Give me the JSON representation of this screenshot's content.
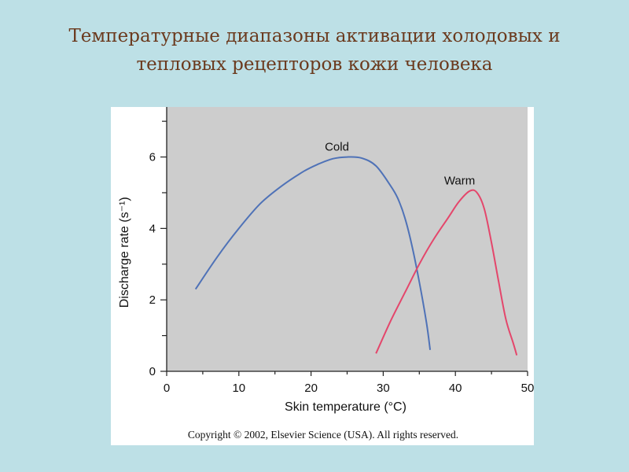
{
  "slide": {
    "title_line1": "Температурные диапазоны активации холодовых и",
    "title_line2": "тепловых рецепторов кожи человека"
  },
  "chart_data": {
    "type": "line",
    "xlabel": "Skin temperature (°C)",
    "ylabel": "Discharge rate (s⁻¹)",
    "xlim": [
      0,
      50
    ],
    "ylim": [
      0,
      7.4
    ],
    "x_ticks": [
      0,
      10,
      20,
      30,
      40,
      50
    ],
    "y_ticks": [
      0,
      2,
      4,
      6
    ],
    "grid": false,
    "plot_background": "#cdcdcd",
    "series": [
      {
        "name": "Cold",
        "color": "#4f72b7",
        "points": [
          [
            4,
            2.3
          ],
          [
            7,
            3.2
          ],
          [
            10,
            4.0
          ],
          [
            13,
            4.7
          ],
          [
            16,
            5.2
          ],
          [
            19,
            5.6
          ],
          [
            21,
            5.8
          ],
          [
            23,
            5.95
          ],
          [
            25,
            6.0
          ],
          [
            27,
            5.97
          ],
          [
            29,
            5.75
          ],
          [
            31,
            5.2
          ],
          [
            32,
            4.85
          ],
          [
            33,
            4.3
          ],
          [
            34,
            3.5
          ],
          [
            35,
            2.5
          ],
          [
            36,
            1.35
          ],
          [
            36.5,
            0.6
          ]
        ]
      },
      {
        "name": "Warm",
        "color": "#e4466b",
        "points": [
          [
            29,
            0.5
          ],
          [
            31,
            1.4
          ],
          [
            33,
            2.2
          ],
          [
            35,
            3.0
          ],
          [
            37,
            3.7
          ],
          [
            39,
            4.3
          ],
          [
            40.5,
            4.75
          ],
          [
            42,
            5.05
          ],
          [
            43,
            5.0
          ],
          [
            44,
            4.55
          ],
          [
            45,
            3.6
          ],
          [
            46,
            2.5
          ],
          [
            47,
            1.45
          ],
          [
            48,
            0.8
          ],
          [
            48.5,
            0.45
          ]
        ]
      }
    ],
    "copyright": "Copyright © 2002, Elsevier Science (USA). All rights reserved."
  }
}
